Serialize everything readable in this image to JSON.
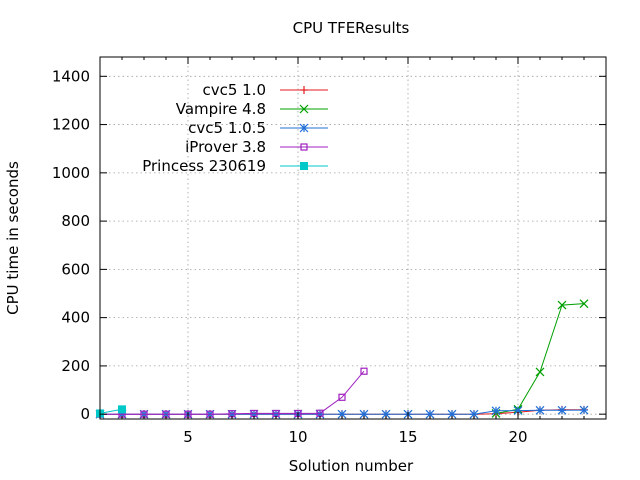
{
  "chart_data": {
    "type": "line",
    "title": "CPU TFEResults",
    "xlabel": "Solution number",
    "ylabel": "CPU time in seconds",
    "xlim": [
      1,
      24
    ],
    "ylim": [
      -20,
      1480
    ],
    "xticks": [
      5,
      10,
      15,
      20
    ],
    "yticks": [
      0,
      200,
      400,
      600,
      800,
      1000,
      1200,
      1400
    ],
    "grid": true,
    "legend_position": "top-left",
    "series": [
      {
        "name": "cvc5 1.0",
        "color": "#e41a1c",
        "marker": "plus",
        "x": [
          1,
          2,
          3,
          4,
          5,
          6,
          7,
          8,
          9,
          10,
          11,
          12,
          13,
          14,
          15,
          16,
          17,
          18,
          19,
          20,
          21,
          22,
          23
        ],
        "y": [
          0,
          0,
          0,
          0,
          0,
          0,
          0,
          0,
          0,
          0,
          0,
          0,
          0,
          0,
          0,
          0,
          0,
          0,
          2,
          8,
          16,
          18,
          18
        ]
      },
      {
        "name": "Vampire 4.8",
        "color": "#00a000",
        "marker": "cross",
        "x": [
          19,
          20,
          21,
          22,
          23
        ],
        "y": [
          3,
          20,
          175,
          452,
          458
        ]
      },
      {
        "name": "cvc5 1.0.5",
        "color": "#1f6fd6",
        "marker": "star",
        "x": [
          1,
          2,
          3,
          4,
          5,
          6,
          7,
          8,
          9,
          10,
          11,
          12,
          13,
          14,
          15,
          16,
          17,
          18,
          19,
          20,
          21,
          22,
          23
        ],
        "y": [
          0,
          0,
          0,
          0,
          0,
          0,
          0,
          0,
          0,
          0,
          0,
          0,
          0,
          0,
          0,
          0,
          0,
          0,
          14,
          15,
          16,
          16,
          17
        ]
      },
      {
        "name": "iProver 3.8",
        "color": "#a020c0",
        "marker": "square-open",
        "x": [
          1,
          2,
          3,
          4,
          5,
          6,
          7,
          8,
          9,
          10,
          11,
          12,
          13
        ],
        "y": [
          0,
          0,
          0,
          0,
          0,
          0,
          2,
          3,
          3,
          3,
          4,
          70,
          178
        ]
      },
      {
        "name": "Princess 230619",
        "color": "#00c8c8",
        "marker": "square-filled",
        "x": [
          1,
          2
        ],
        "y": [
          3,
          20
        ]
      }
    ]
  }
}
